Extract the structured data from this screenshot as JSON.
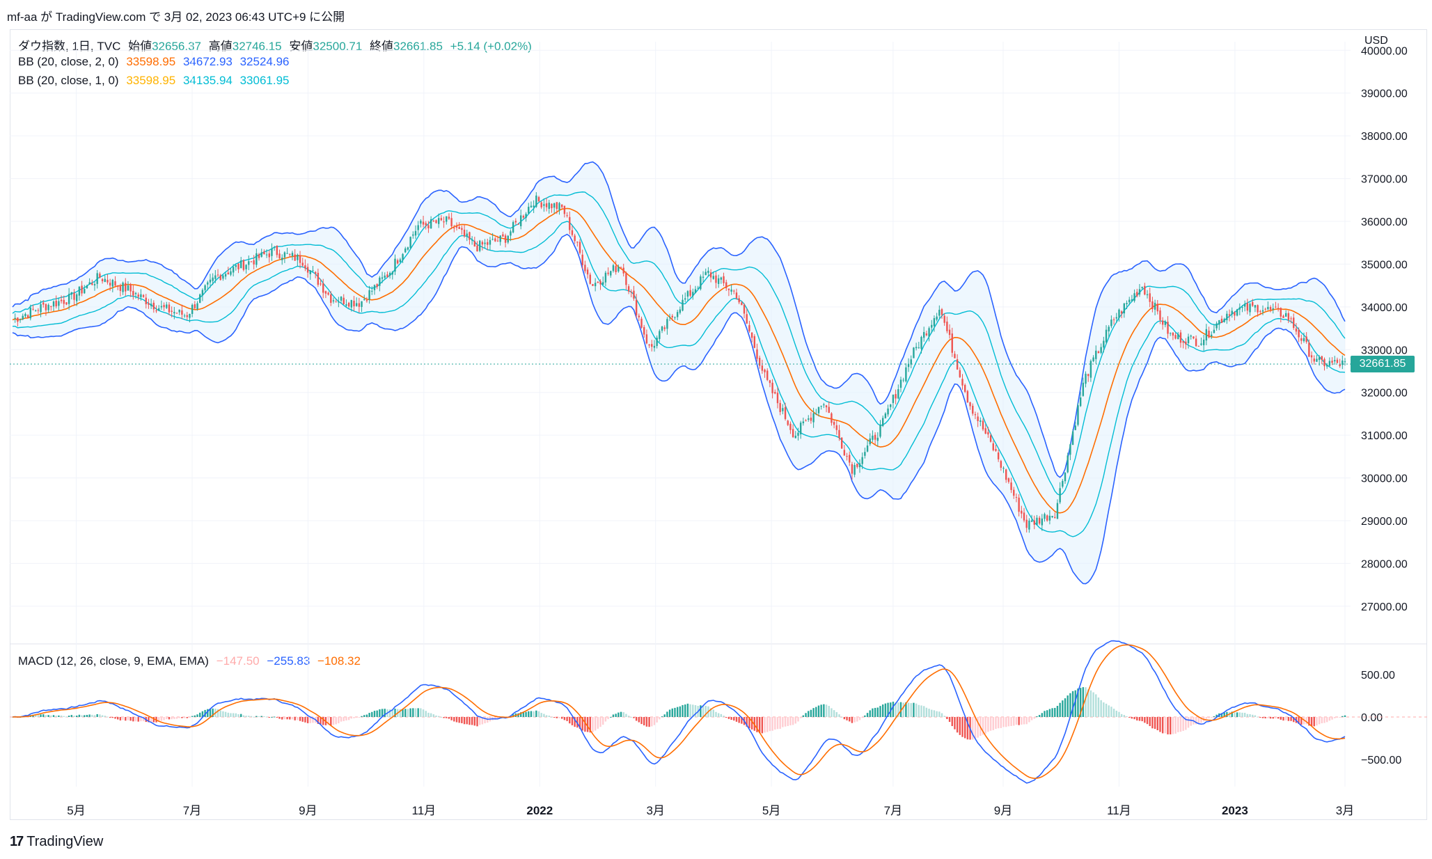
{
  "caption": "mf-aa が TradingView.com で 3月 02, 2023 06:43 UTC+9 に公開",
  "legend": {
    "symbol": "ダウ指数, 1日, TVC",
    "open_label": "始値",
    "open": "32656.37",
    "high_label": "高値",
    "high": "32746.15",
    "low_label": "安値",
    "low": "32500.71",
    "close_label": "終値",
    "close": "32661.85",
    "change": "+5.14 (+0.02%)",
    "bb1_label": "BB (20, close, 2, 0)",
    "bb1_basis": "33598.95",
    "bb1_upper": "34672.93",
    "bb1_lower": "32524.96",
    "bb2_label": "BB (20, close, 1, 0)",
    "bb2_basis": "33598.95",
    "bb2_upper": "34135.94",
    "bb2_lower": "33061.95",
    "macd_label": "MACD (12, 26, close, 9, EMA, EMA)",
    "macd_hist": "−147.50",
    "macd_line": "−255.83",
    "macd_signal": "−108.32"
  },
  "currency": "USD",
  "last_price": "32661.85",
  "footer": {
    "brand": "TradingView",
    "logo": "tv-logo-icon"
  },
  "colors": {
    "up": "#26a69a",
    "down": "#ef5350",
    "basis": "#ff6d00",
    "bb_outer": "#2962ff",
    "bb_inner": "#00bcd4",
    "bb_fill": "#e3f2fd",
    "macd": "#2962ff",
    "signal": "#ff6d00",
    "hist_up": "#26a69a",
    "hist_down": "#ef5350",
    "hist_up_light": "#b2dfdb",
    "hist_down_light": "#ffcdd2"
  },
  "chart_data": [
    {
      "type": "candlestick",
      "title": "ダウ指数, 1日, TVC",
      "x_ticks": [
        "5月",
        "7月",
        "9月",
        "11月",
        "2022",
        "3月",
        "5月",
        "7月",
        "9月",
        "11月",
        "2023",
        "3月"
      ],
      "y_ticks": [
        "27000.00",
        "28000.00",
        "29000.00",
        "30000.00",
        "31000.00",
        "32000.00",
        "33000.00",
        "34000.00",
        "35000.00",
        "36000.00",
        "37000.00",
        "38000.00",
        "39000.00",
        "40000.00"
      ],
      "ylim": [
        26200,
        40200
      ],
      "close_path_x_months": [
        0.0,
        0.5,
        1.0,
        1.5,
        2.0,
        2.5,
        3.0,
        3.5,
        4.0,
        4.5,
        5.0,
        5.5,
        6.0,
        6.5,
        7.0,
        7.5,
        8.0,
        8.5,
        9.0,
        9.5,
        10.0,
        10.5,
        11.0,
        11.5,
        12.0,
        12.5,
        13.0,
        13.5,
        14.0,
        14.5,
        15.0,
        15.5,
        16.0,
        16.5,
        17.0,
        17.5,
        18.0,
        18.5,
        19.0,
        19.5,
        20.0,
        20.5,
        21.0,
        21.5,
        22.0,
        22.5,
        23.0
      ],
      "close_path": [
        33700,
        34000,
        34200,
        34700,
        34400,
        34000,
        33800,
        34700,
        35000,
        35300,
        35100,
        34200,
        34100,
        34800,
        35900,
        36000,
        35400,
        35600,
        36500,
        36300,
        34500,
        35000,
        33000,
        34000,
        34800,
        34300,
        32300,
        31000,
        31800,
        30200,
        31200,
        32800,
        34000,
        31800,
        30500,
        28900,
        29200,
        32300,
        33700,
        34500,
        33300,
        33200,
        33900,
        34000,
        33800,
        32700,
        32661
      ],
      "bb1_basis": "33598.95",
      "bb1_upper": "34672.93",
      "bb1_lower": "32524.96",
      "bb2_upper": "34135.94",
      "bb2_lower": "33061.95",
      "last": 32661.85
    },
    {
      "type": "line",
      "title": "MACD (12, 26, close, 9, EMA, EMA)",
      "y_ticks": [
        "500.00",
        "0.00",
        "−500.00"
      ],
      "ylim": [
        -820,
        820
      ],
      "last_values": {
        "histogram": -147.5,
        "macd": -255.83,
        "signal": -108.32
      }
    }
  ]
}
